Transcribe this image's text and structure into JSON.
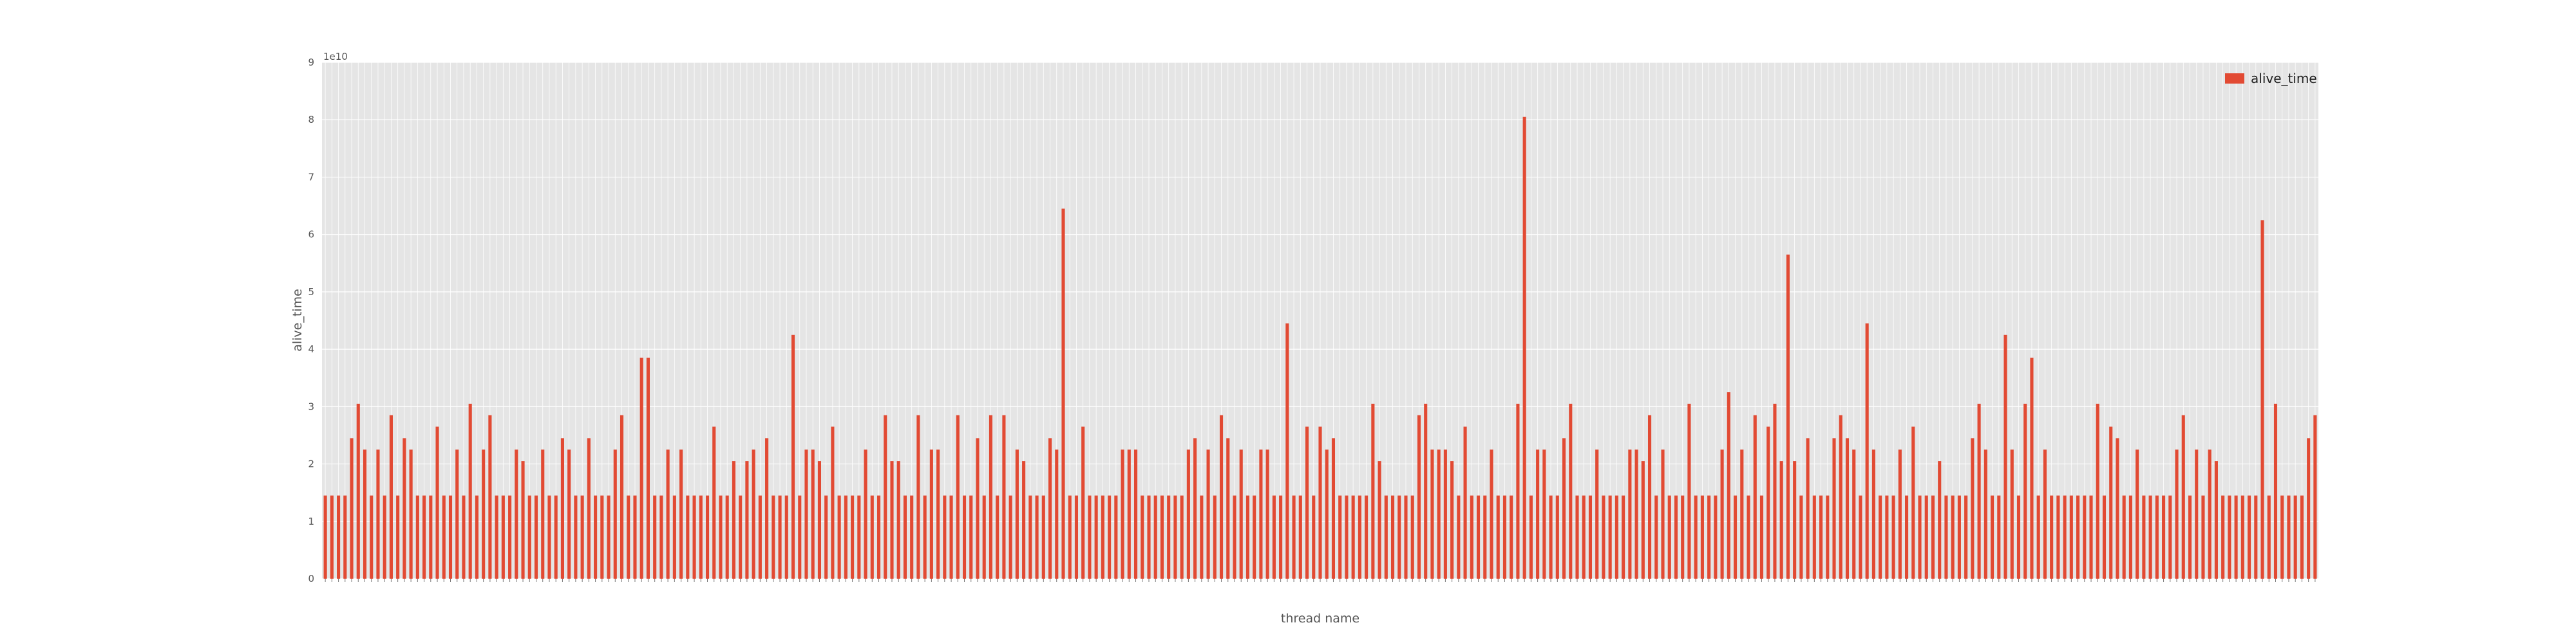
{
  "chart_data": {
    "type": "bar",
    "title": "",
    "xlabel": "thread name",
    "ylabel": "alive_time",
    "y_offset_text": "1e10",
    "ylim": [
      0,
      9
    ],
    "yticks": [
      "0",
      "1",
      "2",
      "3",
      "4",
      "5",
      "6",
      "7",
      "8",
      "9"
    ],
    "grid": true,
    "legend": {
      "position": "top-right",
      "entries": [
        "alive_time"
      ]
    },
    "colors": {
      "bar": "#e24a33",
      "plot_bg": "#e5e5e5",
      "grid": "#ffffff",
      "text": "#555555"
    },
    "series": [
      {
        "name": "alive_time",
        "values": [
          1.45,
          1.45,
          1.45,
          1.45,
          2.45,
          3.05,
          2.25,
          1.45,
          2.25,
          1.45,
          2.85,
          1.45,
          2.45,
          2.25,
          1.45,
          1.45,
          1.45,
          2.65,
          1.45,
          1.45,
          2.25,
          1.45,
          3.05,
          1.45,
          2.25,
          2.85,
          1.45,
          1.45,
          1.45,
          2.25,
          2.05,
          1.45,
          1.45,
          2.25,
          1.45,
          1.45,
          2.45,
          2.25,
          1.45,
          1.45,
          2.45,
          1.45,
          1.45,
          1.45,
          2.25,
          2.85,
          1.45,
          1.45,
          3.85,
          3.85,
          1.45,
          1.45,
          2.25,
          1.45,
          2.25,
          1.45,
          1.45,
          1.45,
          1.45,
          2.65,
          1.45,
          1.45,
          2.05,
          1.45,
          2.05,
          2.25,
          1.45,
          2.45,
          1.45,
          1.45,
          1.45,
          4.25,
          1.45,
          2.25,
          2.25,
          2.05,
          1.45,
          2.65,
          1.45,
          1.45,
          1.45,
          1.45,
          2.25,
          1.45,
          1.45,
          2.85,
          2.05,
          2.05,
          1.45,
          1.45,
          2.85,
          1.45,
          2.25,
          2.25,
          1.45,
          1.45,
          2.85,
          1.45,
          1.45,
          2.45,
          1.45,
          2.85,
          1.45,
          2.85,
          1.45,
          2.25,
          2.05,
          1.45,
          1.45,
          1.45,
          2.45,
          2.25,
          6.45,
          1.45,
          1.45,
          2.65,
          1.45,
          1.45,
          1.45,
          1.45,
          1.45,
          2.25,
          2.25,
          2.25,
          1.45,
          1.45,
          1.45,
          1.45,
          1.45,
          1.45,
          1.45,
          2.25,
          2.45,
          1.45,
          2.25,
          1.45,
          2.85,
          2.45,
          1.45,
          2.25,
          1.45,
          1.45,
          2.25,
          2.25,
          1.45,
          1.45,
          4.45,
          1.45,
          1.45,
          2.65,
          1.45,
          2.65,
          2.25,
          2.45,
          1.45,
          1.45,
          1.45,
          1.45,
          1.45,
          3.05,
          2.05,
          1.45,
          1.45,
          1.45,
          1.45,
          1.45,
          2.85,
          3.05,
          2.25,
          2.25,
          2.25,
          2.05,
          1.45,
          2.65,
          1.45,
          1.45,
          1.45,
          2.25,
          1.45,
          1.45,
          1.45,
          3.05,
          8.05,
          1.45,
          2.25,
          2.25,
          1.45,
          1.45,
          2.45,
          3.05,
          1.45,
          1.45,
          1.45,
          2.25,
          1.45,
          1.45,
          1.45,
          1.45,
          2.25,
          2.25,
          2.05,
          2.85,
          1.45,
          2.25,
          1.45,
          1.45,
          1.45,
          3.05,
          1.45,
          1.45,
          1.45,
          1.45,
          2.25,
          3.25,
          1.45,
          2.25,
          1.45,
          2.85,
          1.45,
          2.65,
          3.05,
          2.05,
          5.65,
          2.05,
          1.45,
          2.45,
          1.45,
          1.45,
          1.45,
          2.45,
          2.85,
          2.45,
          2.25,
          1.45,
          4.45,
          2.25,
          1.45,
          1.45,
          1.45,
          2.25,
          1.45,
          2.65,
          1.45,
          1.45,
          1.45,
          2.05,
          1.45,
          1.45,
          1.45,
          1.45,
          2.45,
          3.05,
          2.25,
          1.45,
          1.45,
          4.25,
          2.25,
          1.45,
          3.05,
          3.85,
          1.45,
          2.25,
          1.45,
          1.45,
          1.45,
          1.45,
          1.45,
          1.45,
          1.45,
          3.05,
          1.45,
          2.65,
          2.45,
          1.45,
          1.45,
          2.25,
          1.45,
          1.45,
          1.45,
          1.45,
          1.45,
          2.25,
          2.85,
          1.45,
          2.25,
          1.45,
          2.25,
          2.05,
          1.45,
          1.45,
          1.45,
          1.45,
          1.45,
          1.45,
          6.25,
          1.45,
          3.05,
          1.45,
          1.45,
          1.45,
          1.45,
          2.45,
          2.85
        ]
      }
    ]
  }
}
